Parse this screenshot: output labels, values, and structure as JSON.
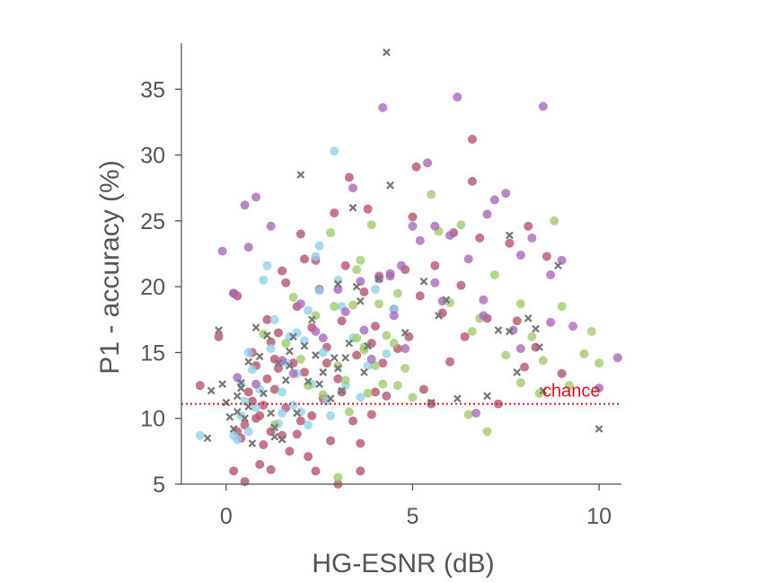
{
  "chart_data": {
    "type": "scatter",
    "title": "",
    "xlabel": "HG-ESNR (dB)",
    "ylabel": "P1 - accuracy (%)",
    "xlim": [
      -1.2,
      10.6
    ],
    "ylim": [
      5,
      38.5
    ],
    "xticks": [
      "0",
      "5",
      "10"
    ],
    "xtick_values": [
      0,
      5,
      10
    ],
    "yticks": [
      "5",
      "10",
      "15",
      "20",
      "25",
      "30",
      "35"
    ],
    "ytick_values": [
      5,
      10,
      15,
      20,
      25,
      30,
      35
    ],
    "grid": false,
    "chance": {
      "label": "chance",
      "y": 11.1,
      "color": "#e8121a"
    },
    "series": [
      {
        "color": "#b5506a",
        "marker": "circle",
        "points": [
          [
            -0.7,
            12.5
          ],
          [
            -0.2,
            16.2
          ],
          [
            0.2,
            6
          ],
          [
            0.2,
            19.5
          ],
          [
            0.3,
            19.3
          ],
          [
            0.3,
            9
          ],
          [
            0.4,
            8.5
          ],
          [
            0.5,
            9.5
          ],
          [
            0.5,
            5.2
          ],
          [
            0.6,
            12
          ],
          [
            0.7,
            15
          ],
          [
            0.8,
            14
          ],
          [
            0.8,
            10
          ],
          [
            0.9,
            6.5
          ],
          [
            1,
            11
          ],
          [
            1,
            8
          ],
          [
            1.1,
            13
          ],
          [
            1.1,
            17.5
          ],
          [
            1.2,
            9
          ],
          [
            1.2,
            6.1
          ],
          [
            1.3,
            14.5
          ],
          [
            1.3,
            12.2
          ],
          [
            1.4,
            16.5
          ],
          [
            1.5,
            8.7
          ],
          [
            1.5,
            21.2
          ],
          [
            1.6,
            10.8
          ],
          [
            1.7,
            7.5
          ],
          [
            1.8,
            14.2
          ],
          [
            1.9,
            18.5
          ],
          [
            2,
            24
          ],
          [
            2,
            9.8
          ],
          [
            2.1,
            13.5
          ],
          [
            2.2,
            7.1
          ],
          [
            2.3,
            16.9
          ],
          [
            2.4,
            22
          ],
          [
            2.4,
            6
          ],
          [
            2.5,
            19.8
          ],
          [
            2.6,
            11.5
          ],
          [
            2.7,
            15.4
          ],
          [
            2.8,
            8.3
          ],
          [
            2.9,
            25.6
          ],
          [
            3,
            5
          ],
          [
            3,
            13
          ],
          [
            3.1,
            17.4
          ],
          [
            3.2,
            21.6
          ],
          [
            3.3,
            28.3
          ],
          [
            3.4,
            9.8
          ],
          [
            3.5,
            14.8
          ],
          [
            3.6,
            6
          ],
          [
            3.7,
            19.6
          ],
          [
            3.8,
            25.9
          ],
          [
            3.9,
            10.3
          ],
          [
            4,
            17
          ],
          [
            4.1,
            20.8
          ],
          [
            4.2,
            14.2
          ],
          [
            4.3,
            11.7
          ],
          [
            4.5,
            18.3
          ],
          [
            4.6,
            15.3
          ],
          [
            4.8,
            21.3
          ],
          [
            4.9,
            16.2
          ],
          [
            5,
            25.3
          ],
          [
            5.1,
            29.1
          ],
          [
            5.2,
            19.3
          ],
          [
            5.3,
            12.2
          ],
          [
            5.5,
            11.1
          ],
          [
            5.6,
            21.6
          ],
          [
            5.8,
            18
          ],
          [
            6,
            14.3
          ],
          [
            6.1,
            24.1
          ],
          [
            6.3,
            20.1
          ],
          [
            6.4,
            16.2
          ],
          [
            6.6,
            31.2
          ],
          [
            6.6,
            28
          ],
          [
            6.8,
            23.7
          ],
          [
            7,
            17.6
          ],
          [
            7.3,
            11.1
          ],
          [
            7.6,
            23.3
          ],
          [
            7.8,
            17.4
          ],
          [
            8,
            13.9
          ],
          [
            8.1,
            24.6
          ],
          [
            8.3,
            15.4
          ],
          [
            8.6,
            22.3
          ],
          [
            9,
            13.4
          ],
          [
            3.6,
            8.1
          ],
          [
            4,
            12
          ],
          [
            1.6,
            20.3
          ],
          [
            2.7,
            14.2
          ],
          [
            1.9,
            8.8
          ],
          [
            0.7,
            11.3
          ],
          [
            1.2,
            15.8
          ],
          [
            2.1,
            22.1
          ],
          [
            3.1,
            12
          ],
          [
            0.9,
            10.2
          ],
          [
            1.4,
            13.8
          ],
          [
            2.3,
            10.2
          ],
          [
            3.9,
            15.7
          ]
        ]
      },
      {
        "color": "#8fd1ec",
        "marker": "circle",
        "points": [
          [
            -0.7,
            8.7
          ],
          [
            0.2,
            8.7
          ],
          [
            0.3,
            8.4
          ],
          [
            0.4,
            10.2
          ],
          [
            0.5,
            11.3
          ],
          [
            0.6,
            9
          ],
          [
            0.7,
            13.7
          ],
          [
            0.8,
            10.8
          ],
          [
            0.9,
            12.2
          ],
          [
            1,
            20.5
          ],
          [
            1.1,
            21.6
          ],
          [
            1.2,
            15.3
          ],
          [
            1.3,
            17.5
          ],
          [
            1.4,
            9.6
          ],
          [
            1.5,
            12
          ],
          [
            1.6,
            14.2
          ],
          [
            1.7,
            16.2
          ],
          [
            1.8,
            11
          ],
          [
            1.9,
            13.4
          ],
          [
            2,
            10.5
          ],
          [
            2.1,
            15.9
          ],
          [
            2.2,
            18.2
          ],
          [
            2.3,
            12.6
          ],
          [
            2.4,
            22.3
          ],
          [
            2.5,
            23.1
          ],
          [
            2.6,
            15
          ],
          [
            2.7,
            11.3
          ],
          [
            2.8,
            10.2
          ],
          [
            2.9,
            30.3
          ],
          [
            3,
            20.5
          ],
          [
            3.1,
            18.5
          ],
          [
            3.2,
            12.5
          ],
          [
            3.4,
            16.1
          ],
          [
            3.6,
            11.6
          ],
          [
            3.8,
            14
          ],
          [
            4,
            19.8
          ],
          [
            4.3,
            14.9
          ],
          [
            4.5,
            18.3
          ],
          [
            0.6,
            15
          ],
          [
            1.9,
            16.5
          ],
          [
            2.5,
            19.7
          ],
          [
            1.5,
            10.4
          ],
          [
            2.2,
            9.5
          ],
          [
            0.4,
            12.6
          ]
        ]
      },
      {
        "color": "#a2c96b",
        "marker": "circle",
        "points": [
          [
            1,
            16.4
          ],
          [
            1.3,
            9.5
          ],
          [
            1.6,
            15.7
          ],
          [
            1.8,
            19.2
          ],
          [
            2,
            14.5
          ],
          [
            2.2,
            12.5
          ],
          [
            2.4,
            17.8
          ],
          [
            2.6,
            11.8
          ],
          [
            2.8,
            24.1
          ],
          [
            3,
            14
          ],
          [
            3.2,
            12.9
          ],
          [
            3.3,
            10.5
          ],
          [
            3.4,
            18.6
          ],
          [
            3.5,
            16.1
          ],
          [
            3.6,
            22
          ],
          [
            3.7,
            15.2
          ],
          [
            3.8,
            11.9
          ],
          [
            3.9,
            24.7
          ],
          [
            4,
            14
          ],
          [
            4.1,
            18.7
          ],
          [
            4.2,
            12.6
          ],
          [
            4.3,
            16.3
          ],
          [
            4.5,
            15.7
          ],
          [
            4.6,
            19.5
          ],
          [
            4.8,
            13.8
          ],
          [
            5,
            11.6
          ],
          [
            5.5,
            27
          ],
          [
            5.7,
            24.2
          ],
          [
            6,
            18.8
          ],
          [
            6.3,
            24.7
          ],
          [
            6.5,
            10.3
          ],
          [
            6.8,
            17.6
          ],
          [
            7,
            9
          ],
          [
            7.2,
            20.9
          ],
          [
            7.5,
            14.8
          ],
          [
            7.9,
            12.7
          ],
          [
            8.2,
            16.2
          ],
          [
            8.5,
            14.4
          ],
          [
            8.8,
            25
          ],
          [
            9,
            18.5
          ],
          [
            9.2,
            12.5
          ],
          [
            9.6,
            14.9
          ],
          [
            9.8,
            16.6
          ],
          [
            10,
            14.2
          ],
          [
            3,
            5.5
          ],
          [
            3.5,
            21.3
          ],
          [
            2.9,
            18.5
          ],
          [
            4.6,
            12.5
          ],
          [
            8.4,
            11.9
          ],
          [
            3.7,
            15.4
          ],
          [
            6.6,
            16.6
          ],
          [
            7.9,
            18.7
          ]
        ]
      },
      {
        "color": "#a667b8",
        "marker": "circle",
        "points": [
          [
            -0.1,
            22.7
          ],
          [
            0.2,
            19.5
          ],
          [
            0.5,
            26.2
          ],
          [
            0.6,
            23
          ],
          [
            0.8,
            12.6
          ],
          [
            1.2,
            24.6
          ],
          [
            1.5,
            14.4
          ],
          [
            1.8,
            13.4
          ],
          [
            2,
            18.7
          ],
          [
            2.4,
            16.6
          ],
          [
            2.6,
            16.1
          ],
          [
            3,
            19.8
          ],
          [
            3.2,
            18.1
          ],
          [
            3.4,
            27.5
          ],
          [
            3.6,
            20.4
          ],
          [
            3.7,
            16.7
          ],
          [
            3.9,
            14.5
          ],
          [
            4.1,
            20.6
          ],
          [
            4.2,
            33.6
          ],
          [
            4.4,
            20.8
          ],
          [
            4.5,
            17.8
          ],
          [
            4.7,
            21.6
          ],
          [
            4.8,
            15.3
          ],
          [
            5,
            24.6
          ],
          [
            5.2,
            23.5
          ],
          [
            5.4,
            29.4
          ],
          [
            5.6,
            20.3
          ],
          [
            5.8,
            18.9
          ],
          [
            6,
            23.9
          ],
          [
            6.2,
            34.4
          ],
          [
            6.5,
            22.1
          ],
          [
            6.7,
            10.4
          ],
          [
            6.9,
            19
          ],
          [
            7,
            25.5
          ],
          [
            7.2,
            26.6
          ],
          [
            7.5,
            27.1
          ],
          [
            7.7,
            16.7
          ],
          [
            7.9,
            22.4
          ],
          [
            8.2,
            23.7
          ],
          [
            8.5,
            33.7
          ],
          [
            8.7,
            20.9
          ],
          [
            9,
            22
          ],
          [
            9.3,
            17
          ],
          [
            10,
            12.3
          ],
          [
            10.5,
            14.6
          ],
          [
            4.4,
            21
          ],
          [
            5.6,
            24.6
          ],
          [
            6.9,
            17.8
          ],
          [
            7.9,
            15.3
          ],
          [
            8.7,
            17.3
          ],
          [
            0.3,
            13.1
          ],
          [
            0.8,
            26.8
          ]
        ]
      },
      {
        "color": "#757575",
        "marker": "x",
        "points": [
          [
            -0.2,
            16.7
          ],
          [
            -0.5,
            8.5
          ],
          [
            -0.4,
            12.1
          ],
          [
            -0.1,
            12.6
          ],
          [
            0,
            11.2
          ],
          [
            0.1,
            10.1
          ],
          [
            0.2,
            9.2
          ],
          [
            0.3,
            11.7
          ],
          [
            0.4,
            12.7
          ],
          [
            0.5,
            10
          ],
          [
            0.6,
            14.3
          ],
          [
            0.7,
            8.1
          ],
          [
            0.8,
            16.9
          ],
          [
            0.9,
            14.7
          ],
          [
            1,
            11.9
          ],
          [
            1.1,
            16.3
          ],
          [
            1.2,
            10.4
          ],
          [
            1.3,
            9.3
          ],
          [
            1.4,
            14.2
          ],
          [
            1.5,
            8.4
          ],
          [
            1.6,
            12.9
          ],
          [
            1.7,
            14
          ],
          [
            1.8,
            16.2
          ],
          [
            1.9,
            10.4
          ],
          [
            2,
            28.5
          ],
          [
            2.1,
            15.5
          ],
          [
            2.2,
            12.8
          ],
          [
            2.3,
            17.5
          ],
          [
            2.4,
            14.8
          ],
          [
            2.5,
            12.6
          ],
          [
            2.6,
            13.5
          ],
          [
            2.8,
            11.5
          ],
          [
            3,
            20.2
          ],
          [
            3,
            13.8
          ],
          [
            3.1,
            12.1
          ],
          [
            3.2,
            14.6
          ],
          [
            3.3,
            15.7
          ],
          [
            3.4,
            26
          ],
          [
            3.5,
            20
          ],
          [
            3.6,
            18.9
          ],
          [
            3.7,
            13.5
          ],
          [
            3.8,
            15.5
          ],
          [
            4.1,
            20.6
          ],
          [
            4.3,
            37.8
          ],
          [
            4.4,
            27.7
          ],
          [
            4.8,
            16.5
          ],
          [
            5.3,
            20.4
          ],
          [
            5.7,
            17.8
          ],
          [
            5.9,
            19
          ],
          [
            6.2,
            11.5
          ],
          [
            7,
            11.7
          ],
          [
            7.3,
            16.7
          ],
          [
            7.6,
            23.9
          ],
          [
            7.8,
            13.5
          ],
          [
            8.1,
            17.6
          ],
          [
            8.3,
            16.8
          ],
          [
            8.4,
            15.4
          ],
          [
            8.5,
            12.1
          ],
          [
            8.9,
            21.6
          ],
          [
            10,
            9.2
          ],
          [
            0.3,
            10.5
          ],
          [
            1.3,
            8.6
          ],
          [
            0.4,
            12.3
          ],
          [
            2.9,
            14.6
          ],
          [
            1.7,
            15.1
          ],
          [
            0.6,
            10.9
          ],
          [
            7.6,
            16.6
          ],
          [
            5.5,
            11.2
          ]
        ]
      }
    ]
  }
}
